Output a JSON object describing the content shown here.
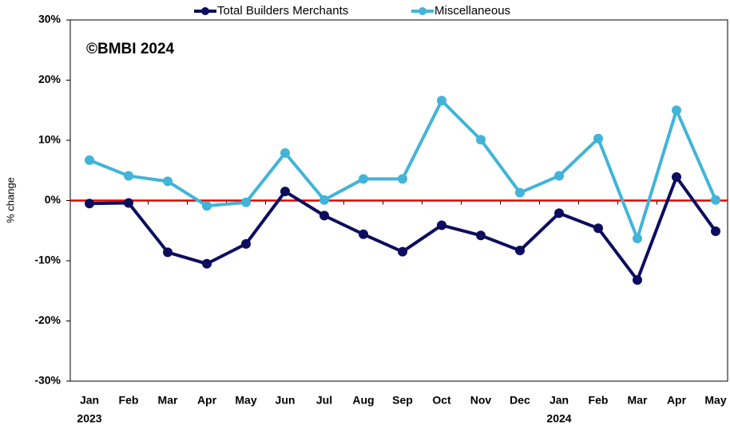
{
  "chart_data": {
    "type": "line",
    "annotation": "©BMBI 2024",
    "y_label": "% change",
    "categories": [
      "Jan",
      "Feb",
      "Mar",
      "Apr",
      "May",
      "Jun",
      "Jul",
      "Aug",
      "Sep",
      "Oct",
      "Nov",
      "Dec",
      "Jan",
      "Feb",
      "Mar",
      "Apr",
      "May"
    ],
    "year_labels": [
      "2023",
      null,
      null,
      null,
      null,
      null,
      null,
      null,
      null,
      null,
      null,
      null,
      "2024",
      null,
      null,
      null,
      null
    ],
    "series": [
      {
        "name": "Total Builders Merchants",
        "color": "#0d0d5e",
        "values": [
          -0.5,
          -0.4,
          -8.6,
          -10.5,
          -7.2,
          1.5,
          -2.5,
          -5.6,
          -8.5,
          -4.1,
          -5.8,
          -8.3,
          -2.1,
          -4.6,
          -13.2,
          3.9,
          -5.1
        ]
      },
      {
        "name": "Miscellaneous",
        "color": "#41b4d8",
        "values": [
          6.7,
          4.1,
          3.2,
          -0.9,
          -0.3,
          7.9,
          0.1,
          3.6,
          3.6,
          16.6,
          10.1,
          1.3,
          4.1,
          10.3,
          -6.3,
          15.0,
          0.1
        ]
      }
    ],
    "ylim": [
      -30,
      30
    ],
    "yticks": [
      {
        "value": -30,
        "label": "-30%"
      },
      {
        "value": -20,
        "label": "-20%"
      },
      {
        "value": -10,
        "label": "-10%"
      },
      {
        "value": 0,
        "label": "0%"
      },
      {
        "value": 10,
        "label": "10%"
      },
      {
        "value": 20,
        "label": "20%"
      },
      {
        "value": 30,
        "label": "30%"
      }
    ],
    "reference_line": {
      "value": 0,
      "color": "#e60000"
    },
    "legend": "top"
  }
}
